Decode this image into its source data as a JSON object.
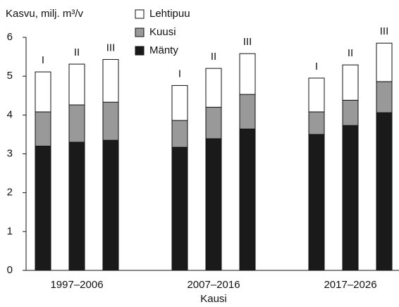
{
  "chart_data": {
    "type": "stacked_bar",
    "y_label": "Kasvu, milj. m³/v",
    "x_label": "Kausi",
    "groups": [
      "1997–2006",
      "2007–2016",
      "2017–2026"
    ],
    "bar_labels": [
      "I",
      "II",
      "III",
      "I",
      "II",
      "III",
      "I",
      "II",
      "III"
    ],
    "series": [
      {
        "name": "Mänty",
        "color": "#1a1a1a",
        "values": [
          3.2,
          3.3,
          3.35,
          3.17,
          3.39,
          3.64,
          3.5,
          3.73,
          4.06
        ]
      },
      {
        "name": "Kuusi",
        "color": "#999999",
        "values": [
          0.88,
          0.96,
          0.98,
          0.69,
          0.81,
          0.89,
          0.58,
          0.65,
          0.8
        ]
      },
      {
        "name": "Lehtipuu",
        "color": "#ffffff",
        "values": [
          1.03,
          1.05,
          1.1,
          0.9,
          1.0,
          1.05,
          0.87,
          0.91,
          0.99
        ]
      }
    ],
    "ylim": [
      0,
      6
    ],
    "yticks": [
      0,
      1,
      2,
      3,
      4,
      5,
      6
    ],
    "legend": "top"
  }
}
